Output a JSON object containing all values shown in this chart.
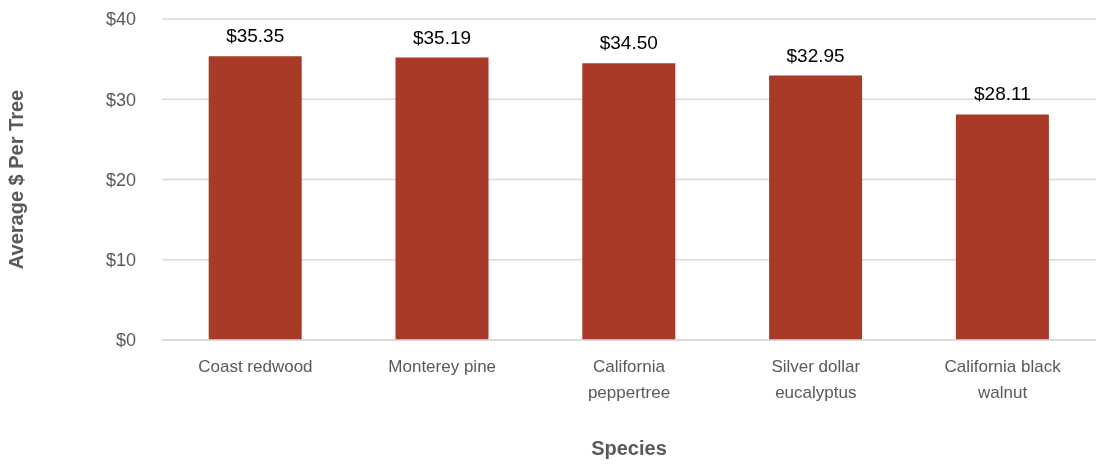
{
  "chart_data": {
    "type": "bar",
    "xlabel": "Species",
    "ylabel": "Average $ Per Tree",
    "categories": [
      "Coast redwood",
      "Monterey pine",
      "California peppertree",
      "Silver dollar eucalyptus",
      "California black walnut"
    ],
    "values": [
      35.35,
      35.19,
      34.5,
      32.95,
      28.11
    ],
    "color": "#a83a27",
    "value_labels": [
      "$35.35",
      "$35.19",
      "$34.50",
      "$32.95",
      "$28.11"
    ],
    "ylim": [
      0,
      40
    ],
    "yticks": [
      {
        "value": 0,
        "label": "$0"
      },
      {
        "value": 10,
        "label": "$10"
      },
      {
        "value": 20,
        "label": "$20"
      },
      {
        "value": 30,
        "label": "$30"
      },
      {
        "value": 40,
        "label": "$40"
      }
    ],
    "grid": "y"
  }
}
